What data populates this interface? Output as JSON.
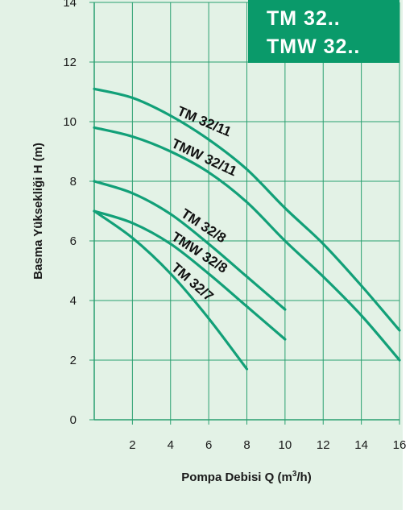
{
  "badge": {
    "line1": "TM 32..",
    "line2": "TMW 32..",
    "color": "#0a9a6a"
  },
  "colors": {
    "plot_bg": "#e3f2e6",
    "grid": "#2aa070",
    "curve": "#12a078"
  },
  "chart_data": {
    "type": "line",
    "xlabel": "Pompa Debisi Q (m³/h)",
    "xlabel_main": "Pompa Debisi Q (m",
    "xlabel_sup": "3",
    "xlabel_tail": "/h)",
    "ylabel": "Basma Yüksekliği H (m)",
    "xlim": [
      0,
      16
    ],
    "ylim": [
      0,
      14
    ],
    "xticks": [
      "2",
      "4",
      "6",
      "8",
      "10",
      "12",
      "14",
      "16"
    ],
    "yticks": [
      "0",
      "2",
      "4",
      "6",
      "8",
      "10",
      "12",
      "14"
    ],
    "grid": true,
    "series": [
      {
        "name": "TM 32/11",
        "x": [
          0,
          2,
          4,
          6,
          8,
          10,
          12,
          14,
          16
        ],
        "y": [
          11.1,
          10.8,
          10.2,
          9.4,
          8.4,
          7.1,
          5.9,
          4.5,
          3.0
        ]
      },
      {
        "name": "TMW 32/11",
        "x": [
          0,
          2,
          4,
          6,
          8,
          10,
          12,
          14,
          16
        ],
        "y": [
          9.8,
          9.5,
          9.0,
          8.3,
          7.3,
          6.0,
          4.8,
          3.5,
          2.0
        ]
      },
      {
        "name": "TM 32/8",
        "x": [
          0,
          2,
          4,
          6,
          8,
          10
        ],
        "y": [
          8.0,
          7.6,
          6.9,
          5.9,
          4.8,
          3.7
        ]
      },
      {
        "name": "TMW 32/8",
        "x": [
          0,
          2,
          4,
          6,
          8,
          10
        ],
        "y": [
          7.0,
          6.6,
          5.9,
          4.9,
          3.8,
          2.7
        ]
      },
      {
        "name": "TM 32/7",
        "x": [
          0,
          2,
          4,
          6,
          8
        ],
        "y": [
          7.0,
          6.1,
          4.9,
          3.4,
          1.7
        ]
      }
    ]
  }
}
